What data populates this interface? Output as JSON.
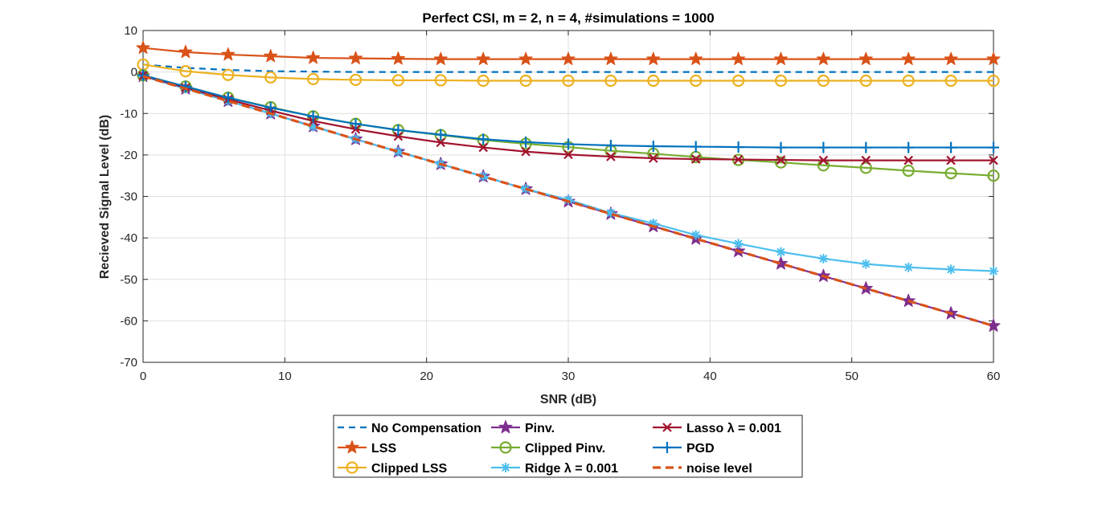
{
  "chart_data": {
    "type": "line",
    "title": "Perfect CSI, m = 2, n = 4, #simulations = 1000",
    "xlabel": "SNR (dB)",
    "ylabel": "Recieved Signal Level (dB)",
    "xlim": [
      0,
      60
    ],
    "ylim": [
      -70,
      10
    ],
    "xticks": [
      0,
      10,
      20,
      30,
      40,
      50,
      60
    ],
    "yticks": [
      10,
      0,
      -10,
      -20,
      -30,
      -40,
      -50,
      -60,
      -70
    ],
    "grid": true,
    "x": [
      0,
      3,
      6,
      9,
      12,
      15,
      18,
      21,
      24,
      27,
      30,
      33,
      36,
      39,
      42,
      45,
      48,
      51,
      54,
      57,
      60
    ],
    "legend_position": "bottom-outside",
    "series": [
      {
        "name": "No Compensation",
        "color": "#0072BD",
        "line": "dashed",
        "marker": "none",
        "values": [
          1.8,
          1.0,
          0.5,
          0.2,
          0.1,
          0.0,
          0.0,
          0.0,
          0.0,
          0.0,
          0.0,
          0.0,
          0.0,
          0.0,
          0.0,
          0.0,
          0.0,
          0.0,
          0.0,
          0.0,
          0.0
        ]
      },
      {
        "name": "LSS",
        "color": "#D95319",
        "line": "solid",
        "marker": "pentagram",
        "values": [
          5.8,
          4.8,
          4.2,
          3.8,
          3.4,
          3.3,
          3.2,
          3.1,
          3.1,
          3.1,
          3.1,
          3.1,
          3.1,
          3.1,
          3.1,
          3.1,
          3.1,
          3.1,
          3.1,
          3.1,
          3.1
        ]
      },
      {
        "name": "Clipped LSS",
        "color": "#EDB120",
        "line": "solid",
        "marker": "circle",
        "values": [
          1.8,
          0.2,
          -0.7,
          -1.3,
          -1.7,
          -1.9,
          -2.0,
          -2.0,
          -2.1,
          -2.1,
          -2.1,
          -2.1,
          -2.1,
          -2.1,
          -2.1,
          -2.1,
          -2.1,
          -2.1,
          -2.1,
          -2.1,
          -2.1
        ]
      },
      {
        "name": "Pinv.",
        "color": "#7E2F8E",
        "line": "solid",
        "marker": "pentagram",
        "values": [
          -1.0,
          -4.0,
          -7.0,
          -10.0,
          -13.1,
          -16.2,
          -19.2,
          -22.2,
          -25.2,
          -28.2,
          -31.2,
          -34.2,
          -37.2,
          -40.2,
          -43.2,
          -46.2,
          -49.2,
          -52.2,
          -55.2,
          -58.2,
          -61.2
        ]
      },
      {
        "name": "Clipped Pinv.",
        "color": "#77AC30",
        "line": "solid",
        "marker": "circle",
        "values": [
          -0.8,
          -3.5,
          -6.2,
          -8.5,
          -10.7,
          -12.5,
          -14.0,
          -15.2,
          -16.4,
          -17.3,
          -18.1,
          -19.0,
          -19.7,
          -20.5,
          -21.2,
          -21.8,
          -22.5,
          -23.1,
          -23.8,
          -24.4,
          -25.0
        ]
      },
      {
        "name": "Ridge λ = 0.001",
        "color": "#4DBEEE",
        "line": "solid",
        "marker": "asterisk",
        "values": [
          -1.0,
          -4.0,
          -7.0,
          -10.0,
          -13.2,
          -16.2,
          -19.2,
          -22.2,
          -25.2,
          -28.2,
          -30.8,
          -34.0,
          -36.5,
          -39.3,
          -41.4,
          -43.4,
          -45.0,
          -46.3,
          -47.1,
          -47.6,
          -48.0
        ]
      },
      {
        "name": "Lasso λ = 0.001",
        "color": "#A2142F",
        "line": "solid",
        "marker": "x",
        "values": [
          -0.9,
          -3.8,
          -6.6,
          -9.3,
          -11.8,
          -13.8,
          -15.5,
          -17.0,
          -18.2,
          -19.2,
          -19.9,
          -20.4,
          -20.8,
          -21.0,
          -21.1,
          -21.2,
          -21.3,
          -21.3,
          -21.3,
          -21.3,
          -21.3
        ]
      },
      {
        "name": "PGD",
        "color": "#0072BD",
        "line": "solid",
        "marker": "plus",
        "values": [
          -0.8,
          -3.5,
          -6.2,
          -8.6,
          -10.7,
          -12.5,
          -14.0,
          -15.1,
          -16.2,
          -16.9,
          -17.4,
          -17.7,
          -17.9,
          -18.0,
          -18.1,
          -18.2,
          -18.2,
          -18.2,
          -18.2,
          -18.2,
          -18.2
        ]
      },
      {
        "name": "noise level",
        "color": "#D95319",
        "line": "dashed-bold",
        "marker": "none",
        "values": [
          -1.0,
          -4.0,
          -7.0,
          -10.0,
          -13.1,
          -16.2,
          -19.2,
          -22.2,
          -25.2,
          -28.2,
          -31.2,
          -34.2,
          -37.2,
          -40.2,
          -43.2,
          -46.2,
          -49.2,
          -52.2,
          -55.2,
          -58.2,
          -61.2
        ]
      }
    ]
  }
}
